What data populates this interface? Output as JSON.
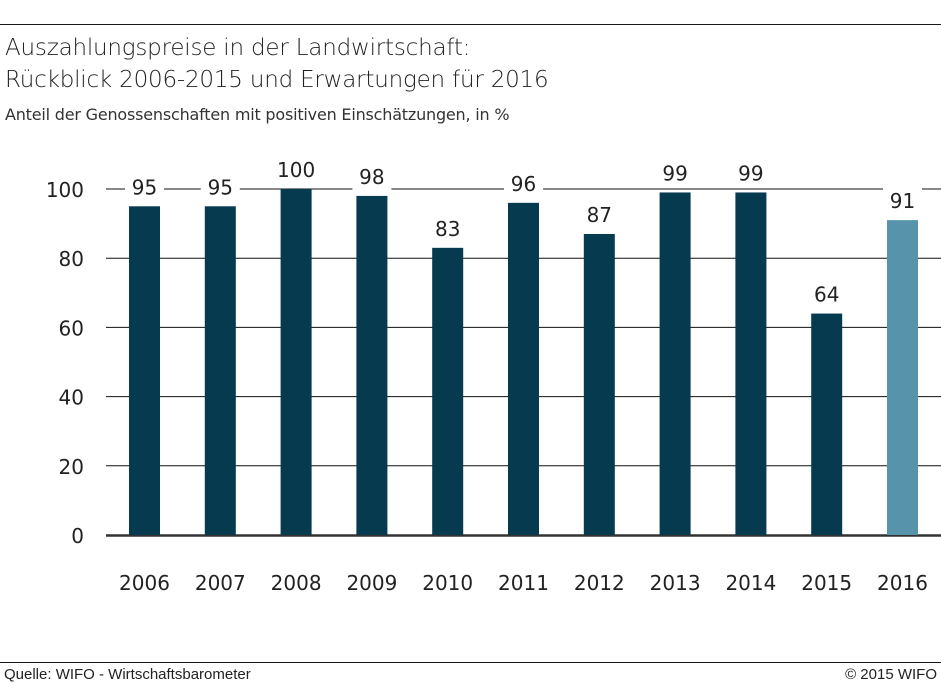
{
  "header": {
    "title_line1": "Auszahlungspreise in der Landwirtschaft:",
    "title_line2": "Rückblick 2006-2015 und Erwartungen für 2016",
    "subtitle": "Anteil der Genossenschaften mit positiven Einschätzungen, in %"
  },
  "footer": {
    "source": "Quelle: WIFO - Wirtschaftsbarometer",
    "copyright": "© 2015 WIFO"
  },
  "colors": {
    "actual": "#053a4f",
    "expectation": "#5793aa",
    "grid": "#111111",
    "baseline": "#333333"
  },
  "chart_data": {
    "type": "bar",
    "title": "Auszahlungspreise in der Landwirtschaft: Rückblick 2006-2015 und Erwartungen für 2016",
    "subtitle": "Anteil der Genossenschaften mit positiven Einschätzungen, in %",
    "xlabel": "",
    "ylabel": "",
    "categories": [
      "2006",
      "2007",
      "2008",
      "2009",
      "2010",
      "2011",
      "2012",
      "2013",
      "2014",
      "2015",
      "2016"
    ],
    "values": [
      95,
      95,
      100,
      98,
      83,
      96,
      87,
      99,
      99,
      64,
      91
    ],
    "data_labels": [
      "95",
      "95",
      "100",
      "98",
      "83",
      "96",
      "87",
      "99",
      "99",
      "64",
      "91"
    ],
    "bar_kind": [
      "actual",
      "actual",
      "actual",
      "actual",
      "actual",
      "actual",
      "actual",
      "actual",
      "actual",
      "actual",
      "expectation"
    ],
    "ylim": [
      0,
      100
    ],
    "yticks": [
      0,
      20,
      40,
      60,
      80,
      100
    ],
    "grid": true,
    "legend": "none",
    "source": "Quelle: WIFO - Wirtschaftsbarometer"
  }
}
